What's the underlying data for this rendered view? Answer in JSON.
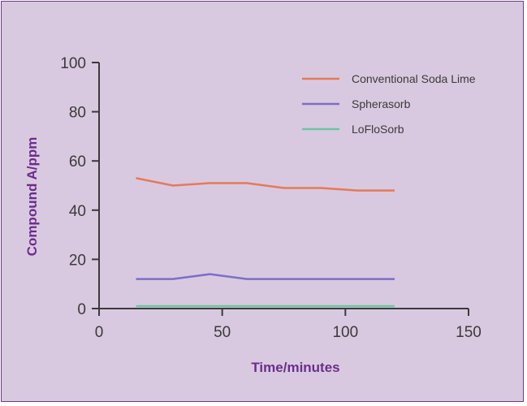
{
  "chart_data": {
    "type": "line",
    "xlabel": "Time/minutes",
    "ylabel": "Compound A/ppm",
    "xlim": [
      0,
      150
    ],
    "ylim": [
      0,
      100
    ],
    "xticks": [
      0,
      50,
      100,
      150
    ],
    "yticks": [
      0,
      20,
      40,
      60,
      80,
      100
    ],
    "x": [
      15,
      30,
      45,
      60,
      75,
      90,
      105,
      120
    ],
    "series": [
      {
        "name": "Conventional Soda Lime",
        "color": "#e57a57",
        "values": [
          53,
          50,
          51,
          51,
          49,
          49,
          48,
          48
        ]
      },
      {
        "name": "Spherasorb",
        "color": "#7b6fc8",
        "values": [
          12,
          12,
          14,
          12,
          12,
          12,
          12,
          12
        ]
      },
      {
        "name": "LoFloSorb",
        "color": "#6cc6a0",
        "values": [
          1,
          1,
          1,
          1,
          1,
          1,
          1,
          1
        ]
      }
    ],
    "grid": false,
    "legend_position": "top-right",
    "background_color": "#d9c9e0",
    "border_color": "#6b3d82",
    "axis_title_color": "#6b2d8c"
  }
}
